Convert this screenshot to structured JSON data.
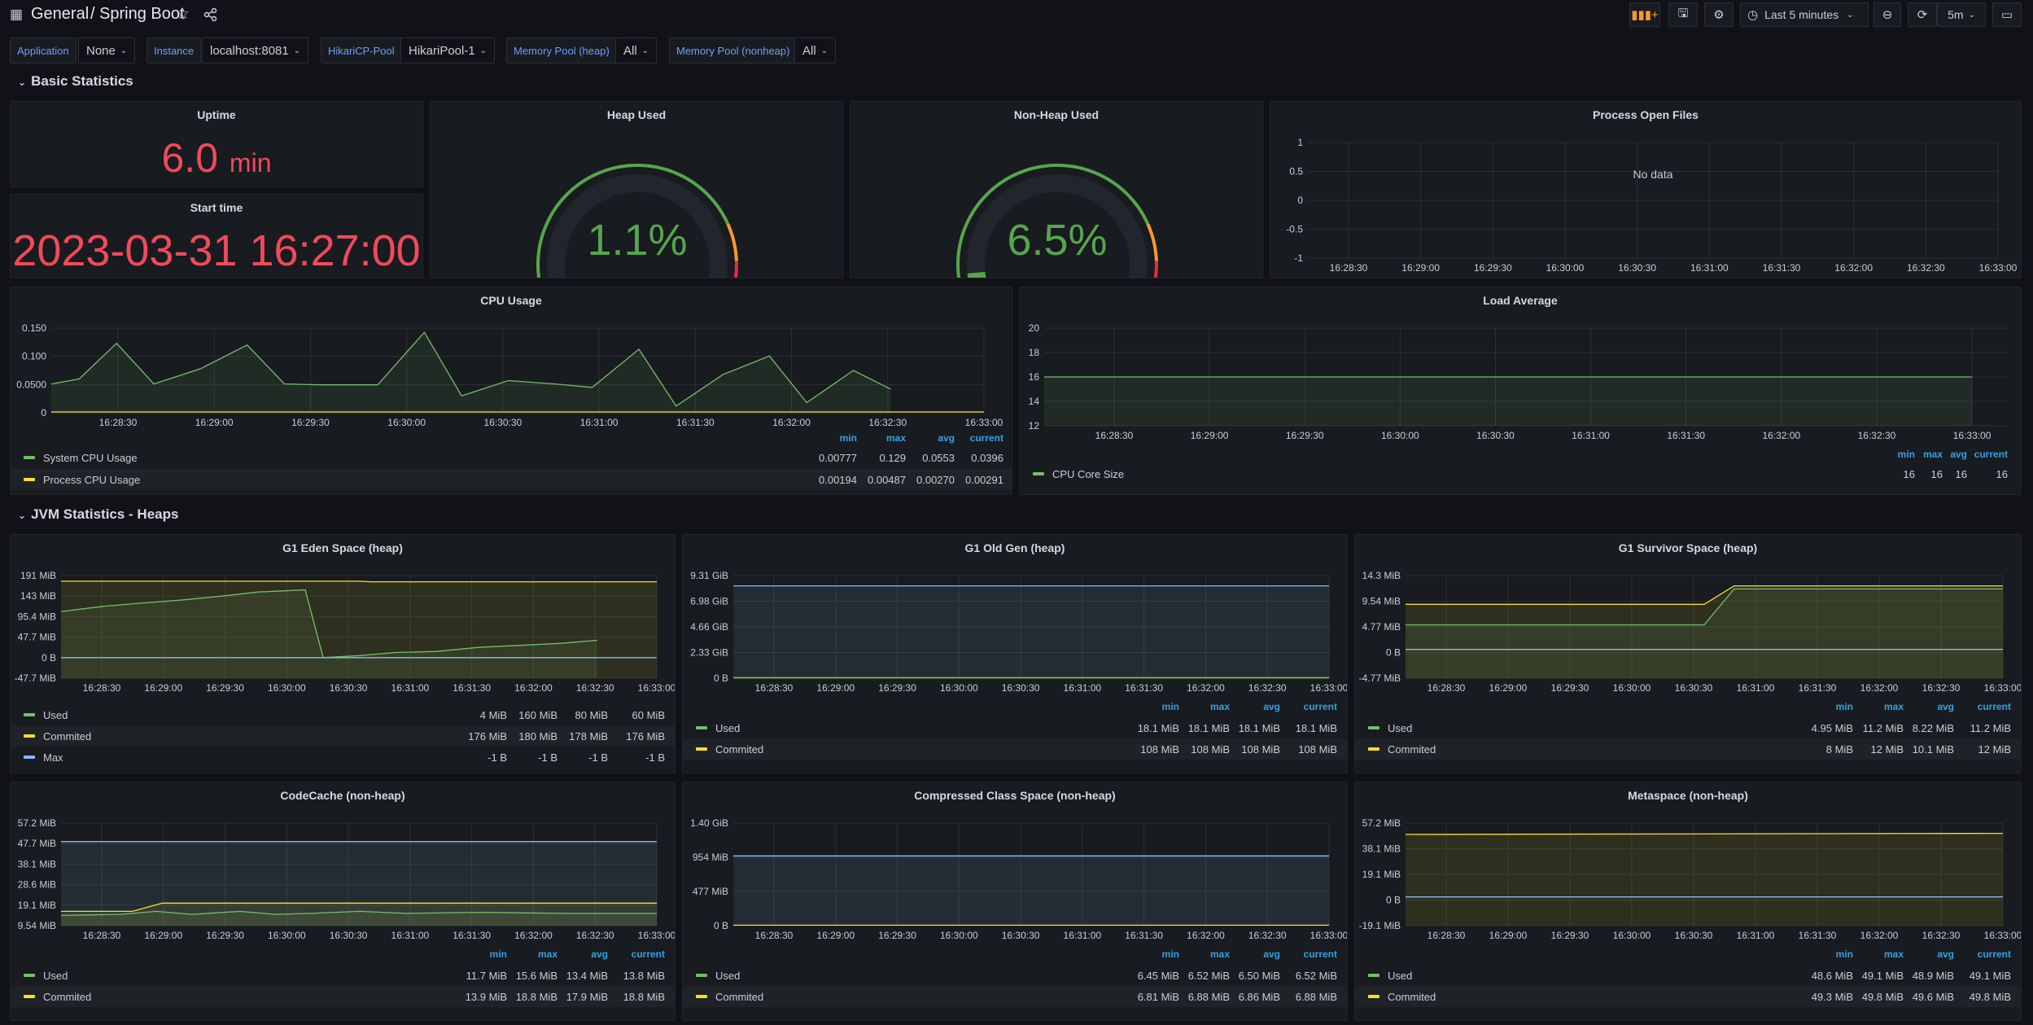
{
  "header": {
    "breadcrumb_folder": "General",
    "breadcrumb_sep": "/",
    "dashboard_title": "Spring Boot",
    "time_range": "Last 5 minutes",
    "refresh_interval": "5m"
  },
  "variables": [
    {
      "label": "Application",
      "value": "None"
    },
    {
      "label": "Instance",
      "value": "localhost:8081"
    },
    {
      "label": "HikariCP-Pool",
      "value": "HikariPool-1"
    },
    {
      "label": "Memory Pool (heap)",
      "value": "All"
    },
    {
      "label": "Memory Pool (nonheap)",
      "value": "All"
    }
  ],
  "rows": {
    "basic": "Basic Statistics",
    "jvm_heaps": "JVM Statistics - Heaps"
  },
  "legend_headers": {
    "min": "min",
    "max": "max",
    "avg": "avg",
    "current": "current"
  },
  "xticks": [
    "16:28:30",
    "16:29:00",
    "16:29:30",
    "16:30:00",
    "16:30:30",
    "16:31:00",
    "16:31:30",
    "16:32:00",
    "16:32:30",
    "16:33:00"
  ],
  "colors": {
    "green": "#73bf69",
    "yellow": "#fade2a",
    "blue": "#5794f2",
    "cyan": "#8ab8ff",
    "red": "#f2495c",
    "gauge_green": "#56a64b",
    "orange": "#ff9830"
  },
  "uptime": {
    "title": "Uptime",
    "value": "6.0",
    "unit": "min"
  },
  "start_time": {
    "title": "Start time",
    "value": "2023-03-31 16:27:00"
  },
  "heap_used": {
    "title": "Heap Used",
    "value": "1.1%",
    "percent": 1.1
  },
  "nonheap_used": {
    "title": "Non-Heap Used",
    "value": "6.5%",
    "percent": 6.5
  },
  "open_files": {
    "title": "Process Open Files",
    "no_data": "No data",
    "yticks": [
      "1",
      "0.5",
      "0",
      "-0.5",
      "-1"
    ]
  },
  "cpu": {
    "title": "CPU Usage",
    "yticks": [
      "0.150",
      "0.100",
      "0.0500",
      "0"
    ],
    "legend": [
      {
        "name": "System CPU Usage",
        "min": "0.00777",
        "max": "0.129",
        "avg": "0.0553",
        "current": "0.0396"
      },
      {
        "name": "Process CPU Usage",
        "min": "0.00194",
        "max": "0.00487",
        "avg": "0.00270",
        "current": "0.00291"
      }
    ]
  },
  "load": {
    "title": "Load Average",
    "yticks": [
      "20",
      "18",
      "16",
      "14",
      "12"
    ],
    "legend": [
      {
        "name": "CPU Core Size",
        "min": "16",
        "max": "16",
        "avg": "16",
        "current": "16"
      }
    ]
  },
  "eden": {
    "title": "G1 Eden Space (heap)",
    "yticks": [
      "191 MiB",
      "143 MiB",
      "95.4 MiB",
      "47.7 MiB",
      "0 B",
      "-47.7 MiB"
    ],
    "legend": [
      {
        "name": "Used",
        "min": "4 MiB",
        "max": "160 MiB",
        "avg": "80 MiB",
        "current": "60 MiB"
      },
      {
        "name": "Commited",
        "min": "176 MiB",
        "max": "180 MiB",
        "avg": "178 MiB",
        "current": "176 MiB"
      },
      {
        "name": "Max",
        "min": "-1 B",
        "max": "-1 B",
        "avg": "-1 B",
        "current": "-1 B"
      }
    ]
  },
  "oldgen": {
    "title": "G1 Old Gen (heap)",
    "yticks": [
      "9.31 GiB",
      "6.98 GiB",
      "4.66 GiB",
      "2.33 GiB",
      "0 B"
    ],
    "legend": [
      {
        "name": "Used",
        "min": "18.1 MiB",
        "max": "18.1 MiB",
        "avg": "18.1 MiB",
        "current": "18.1 MiB"
      },
      {
        "name": "Commited",
        "min": "108 MiB",
        "max": "108 MiB",
        "avg": "108 MiB",
        "current": "108 MiB"
      }
    ]
  },
  "survivor": {
    "title": "G1 Survivor Space (heap)",
    "yticks": [
      "14.3 MiB",
      "9.54 MiB",
      "4.77 MiB",
      "0 B",
      "-4.77 MiB"
    ],
    "legend": [
      {
        "name": "Used",
        "min": "4.95 MiB",
        "max": "11.2 MiB",
        "avg": "8.22 MiB",
        "current": "11.2 MiB"
      },
      {
        "name": "Commited",
        "min": "8 MiB",
        "max": "12 MiB",
        "avg": "10.1 MiB",
        "current": "12 MiB"
      }
    ]
  },
  "codecache": {
    "title": "CodeCache (non-heap)",
    "yticks": [
      "57.2 MiB",
      "47.7 MiB",
      "38.1 MiB",
      "28.6 MiB",
      "19.1 MiB",
      "9.54 MiB"
    ],
    "legend": [
      {
        "name": "Used",
        "min": "11.7 MiB",
        "max": "15.6 MiB",
        "avg": "13.4 MiB",
        "current": "13.8 MiB"
      },
      {
        "name": "Commited",
        "min": "13.9 MiB",
        "max": "18.8 MiB",
        "avg": "17.9 MiB",
        "current": "18.8 MiB"
      }
    ]
  },
  "ccs": {
    "title": "Compressed Class Space (non-heap)",
    "yticks": [
      "1.40 GiB",
      "954 MiB",
      "477 MiB",
      "0 B"
    ],
    "legend": [
      {
        "name": "Used",
        "min": "6.45 MiB",
        "max": "6.52 MiB",
        "avg": "6.50 MiB",
        "current": "6.52 MiB"
      },
      {
        "name": "Commited",
        "min": "6.81 MiB",
        "max": "6.88 MiB",
        "avg": "6.86 MiB",
        "current": "6.88 MiB"
      }
    ]
  },
  "metaspace": {
    "title": "Metaspace (non-heap)",
    "yticks": [
      "57.2 MiB",
      "38.1 MiB",
      "19.1 MiB",
      "0 B",
      "-19.1 MiB"
    ],
    "legend": [
      {
        "name": "Used",
        "min": "48.6 MiB",
        "max": "49.1 MiB",
        "avg": "48.9 MiB",
        "current": "49.1 MiB"
      },
      {
        "name": "Commited",
        "min": "49.3 MiB",
        "max": "49.8 MiB",
        "avg": "49.6 MiB",
        "current": "49.8 MiB"
      }
    ]
  }
}
